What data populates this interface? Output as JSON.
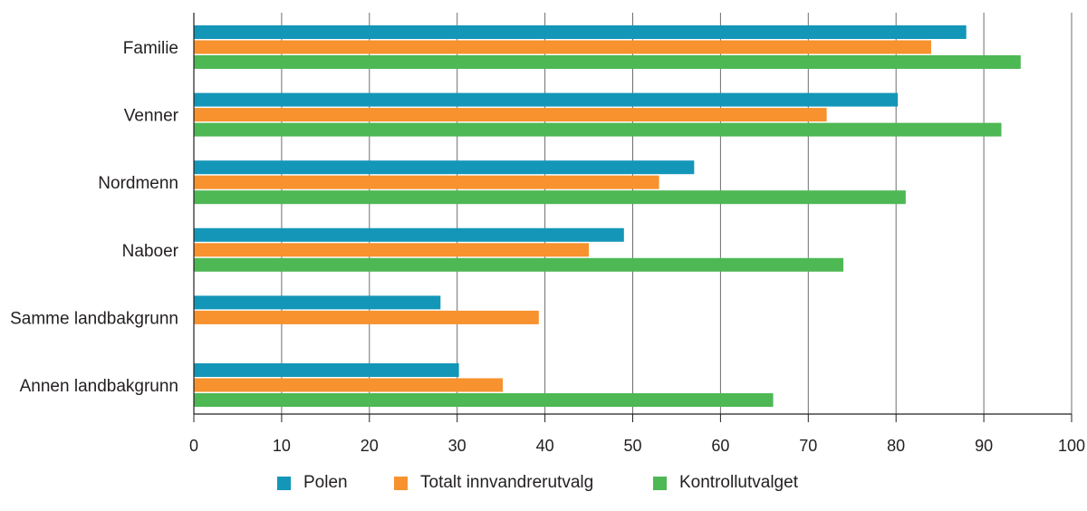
{
  "chart_data": {
    "type": "bar",
    "orientation": "horizontal",
    "categories": [
      "Familie",
      "Venner",
      "Nordmenn",
      "Naboer",
      "Samme landbakgrunn",
      "Annen landbakgrunn"
    ],
    "series": [
      {
        "name": "Polen",
        "color": "#1496b8",
        "values": [
          88,
          80.2,
          57,
          49,
          28.1,
          30.2
        ]
      },
      {
        "name": "Totalt innvandrerutvalg",
        "color": "#f7922e",
        "values": [
          84,
          72.1,
          53,
          45,
          39.3,
          35.2
        ]
      },
      {
        "name": "Kontrollutvalget",
        "color": "#4db854",
        "values": [
          94.2,
          92,
          81.1,
          74,
          null,
          66
        ]
      }
    ],
    "xlim": [
      0,
      100
    ],
    "xticks": [
      "0",
      "10",
      "20",
      "30",
      "40",
      "50",
      "60",
      "70",
      "80",
      "90",
      "100"
    ],
    "grid": true,
    "legend_position": "bottom"
  }
}
